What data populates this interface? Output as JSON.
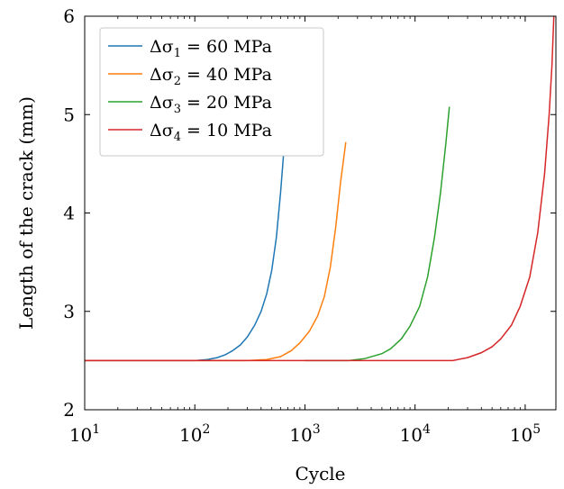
{
  "chart_data": {
    "type": "line",
    "xscale": "log",
    "xlabel": "Cycle",
    "ylabel": "Length of the crack (mm)",
    "xlim": [
      10,
      190000
    ],
    "ylim": [
      2,
      6
    ],
    "xticks": [
      10,
      100,
      1000,
      10000,
      100000
    ],
    "xtick_labels": [
      {
        "base": "10",
        "exp": "1"
      },
      {
        "base": "10",
        "exp": "2"
      },
      {
        "base": "10",
        "exp": "3"
      },
      {
        "base": "10",
        "exp": "4"
      },
      {
        "base": "10",
        "exp": "5"
      }
    ],
    "yticks": [
      2,
      3,
      4,
      5,
      6
    ],
    "ytick_labels": [
      "2",
      "3",
      "4",
      "5",
      "6"
    ],
    "grid": false,
    "legend_position": "top-left",
    "series": [
      {
        "name": "Δσ1 = 60 MPa",
        "legend": {
          "sym": "Δσ",
          "sub": "1",
          "rest": " = 60 MPa"
        },
        "color": "#1f77b4",
        "points": [
          [
            10,
            2.5
          ],
          [
            100,
            2.5
          ],
          [
            130,
            2.51
          ],
          [
            160,
            2.53
          ],
          [
            190,
            2.56
          ],
          [
            220,
            2.6
          ],
          [
            260,
            2.66
          ],
          [
            300,
            2.74
          ],
          [
            350,
            2.86
          ],
          [
            400,
            3.0
          ],
          [
            450,
            3.18
          ],
          [
            500,
            3.42
          ],
          [
            550,
            3.75
          ],
          [
            600,
            4.2
          ],
          [
            640,
            4.6
          ],
          [
            680,
            5.15
          ]
        ]
      },
      {
        "name": "Δσ2 = 40 MPa",
        "legend": {
          "sym": "Δσ",
          "sub": "2",
          "rest": " = 40 MPa"
        },
        "color": "#ff7f0e",
        "points": [
          [
            10,
            2.5
          ],
          [
            300,
            2.5
          ],
          [
            450,
            2.51
          ],
          [
            600,
            2.54
          ],
          [
            750,
            2.6
          ],
          [
            900,
            2.68
          ],
          [
            1100,
            2.8
          ],
          [
            1300,
            2.95
          ],
          [
            1500,
            3.15
          ],
          [
            1700,
            3.45
          ],
          [
            1900,
            3.85
          ],
          [
            2100,
            4.3
          ],
          [
            2350,
            4.72
          ]
        ]
      },
      {
        "name": "Δσ3 = 20 MPa",
        "legend": {
          "sym": "Δσ",
          "sub": "3",
          "rest": " = 20 MPa"
        },
        "color": "#2ca02c",
        "points": [
          [
            1000,
            2.5
          ],
          [
            2500,
            2.5
          ],
          [
            3500,
            2.52
          ],
          [
            5000,
            2.57
          ],
          [
            6000,
            2.62
          ],
          [
            7500,
            2.72
          ],
          [
            9000,
            2.85
          ],
          [
            11000,
            3.05
          ],
          [
            13000,
            3.35
          ],
          [
            15000,
            3.75
          ],
          [
            17000,
            4.2
          ],
          [
            19000,
            4.7
          ],
          [
            20500,
            5.08
          ]
        ]
      },
      {
        "name": "Δσ4 = 10 MPa",
        "legend": {
          "sym": "Δσ",
          "sub": "4",
          "rest": " = 10 MPa"
        },
        "color": "#d62728",
        "points": [
          [
            10,
            2.5
          ],
          [
            22000,
            2.5
          ],
          [
            30000,
            2.53
          ],
          [
            40000,
            2.58
          ],
          [
            50000,
            2.64
          ],
          [
            60000,
            2.72
          ],
          [
            75000,
            2.86
          ],
          [
            90000,
            3.05
          ],
          [
            110000,
            3.35
          ],
          [
            130000,
            3.8
          ],
          [
            150000,
            4.4
          ],
          [
            165000,
            5.0
          ],
          [
            175000,
            5.5
          ],
          [
            182000,
            6.0
          ]
        ]
      }
    ]
  }
}
